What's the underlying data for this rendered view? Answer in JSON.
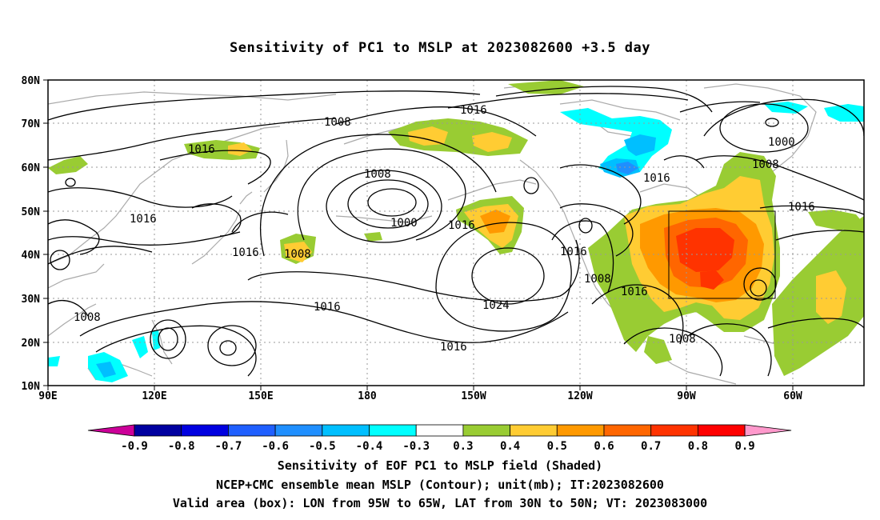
{
  "title": "Sensitivity of PC1 to MSLP at 2023082600 +3.5 day",
  "lat_labels": [
    "80N",
    "70N",
    "60N",
    "50N",
    "40N",
    "30N",
    "20N",
    "10N"
  ],
  "lon_labels": [
    "90E",
    "120E",
    "150E",
    "180",
    "150W",
    "120W",
    "90W",
    "60W"
  ],
  "contour_labels": [
    "1016",
    "1008",
    "1000",
    "1016",
    "1008",
    "1016",
    "1008",
    "1000",
    "1016",
    "1008",
    "1016",
    "1016",
    "1008",
    "1024",
    "1016",
    "1016",
    "1008",
    "1016",
    "1008"
  ],
  "colorbar": {
    "ticks": [
      "-0.9",
      "-0.8",
      "-0.7",
      "-0.6",
      "-0.5",
      "-0.4",
      "-0.3",
      "0.3",
      "0.4",
      "0.5",
      "0.6",
      "0.7",
      "0.8",
      "0.9"
    ],
    "colors": [
      "#0000a0",
      "#0000e0",
      "#1f5fff",
      "#1f8fff",
      "#00bfff",
      "#00ffff",
      "#ffffff",
      "#99cc33",
      "#ffcc33",
      "#ff9900",
      "#ff6600",
      "#ff3300",
      "#ff0000"
    ],
    "under_color": "#cc0099",
    "over_color": "#ff99cc"
  },
  "caption": {
    "line1": "Sensitivity of EOF PC1 to MSLP field (Shaded)",
    "line2": "NCEP+CMC ensemble mean MSLP (Contour); unit(mb); IT:2023082600",
    "line3": "Valid area (box): LON from 95W to 65W, LAT from 30N to 50N; VT: 2023083000"
  }
}
